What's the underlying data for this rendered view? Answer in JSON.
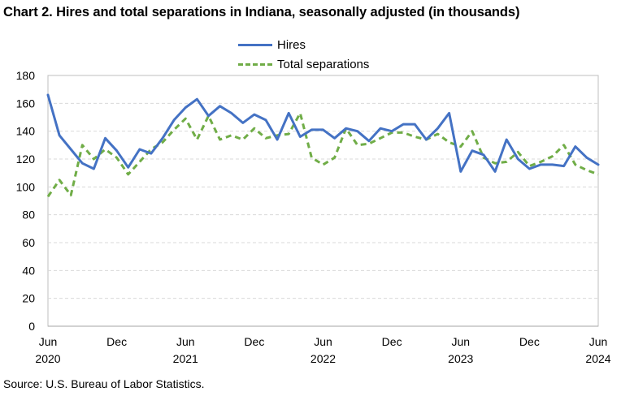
{
  "title": "Chart 2. Hires and total separations in Indiana, seasonally adjusted (in thousands)",
  "source": "Source: U.S. Bureau of Labor Statistics.",
  "colors": {
    "hires": "#4472C4",
    "separations": "#70AD47",
    "grid": "#d9d9d9",
    "axis": "#bfbfbf"
  },
  "chart_data": {
    "type": "line",
    "title": "Chart 2. Hires and total separations in Indiana, seasonally adjusted (in thousands)",
    "xlabel": "",
    "ylabel": "",
    "ylim": [
      0,
      180
    ],
    "yticks": [
      0,
      20,
      40,
      60,
      80,
      100,
      120,
      140,
      160,
      180
    ],
    "grid": "horizontal dashed",
    "legend_position": "top-center",
    "x_start": "2020-06",
    "x_end": "2024-06",
    "x_ticks": [
      {
        "month": "Jun",
        "year": "2020",
        "index": 0
      },
      {
        "month": "Dec",
        "year": "",
        "index": 6
      },
      {
        "month": "Jun",
        "year": "2021",
        "index": 12
      },
      {
        "month": "Dec",
        "year": "",
        "index": 18
      },
      {
        "month": "Jun",
        "year": "2022",
        "index": 24
      },
      {
        "month": "Dec",
        "year": "",
        "index": 30
      },
      {
        "month": "Jun",
        "year": "2023",
        "index": 36
      },
      {
        "month": "Dec",
        "year": "",
        "index": 42
      },
      {
        "month": "Jun",
        "year": "2024",
        "index": 48
      }
    ],
    "series": [
      {
        "name": "Hires",
        "style": "solid",
        "values": [
          166,
          137,
          127,
          117,
          113,
          135,
          126,
          114,
          127,
          124,
          135,
          148,
          157,
          163,
          151,
          158,
          153,
          146,
          152,
          148,
          134,
          153,
          136,
          141,
          141,
          135,
          142,
          140,
          133,
          142,
          140,
          145,
          145,
          134,
          142,
          153,
          111,
          126,
          123,
          111,
          134,
          120,
          113,
          116,
          116,
          115,
          129,
          121,
          116
        ]
      },
      {
        "name": "Total separations",
        "style": "dashed",
        "values": [
          93,
          105,
          94,
          130,
          120,
          127,
          121,
          109,
          118,
          127,
          132,
          141,
          149,
          134,
          151,
          134,
          137,
          134,
          142,
          135,
          137,
          138,
          153,
          121,
          116,
          121,
          142,
          130,
          131,
          135,
          139,
          139,
          136,
          134,
          138,
          132,
          129,
          140,
          121,
          117,
          118,
          125,
          115,
          118,
          122,
          130,
          116,
          112,
          109
        ]
      }
    ]
  }
}
